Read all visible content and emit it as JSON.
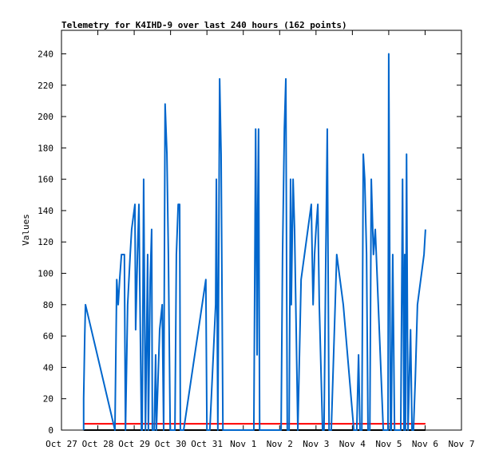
{
  "chart_data": {
    "type": "line",
    "title": "Telemetry for K4IHD-9 over last 240 hours (162 points)",
    "y_label": "Values",
    "xlim": [
      0,
      11
    ],
    "xticks": [
      {
        "value": 0,
        "label": "Oct 27"
      },
      {
        "value": 1,
        "label": "Oct 28"
      },
      {
        "value": 2,
        "label": "Oct 29"
      },
      {
        "value": 3,
        "label": "Oct 30"
      },
      {
        "value": 4,
        "label": "Oct 31"
      },
      {
        "value": 5,
        "label": "Nov 1"
      },
      {
        "value": 6,
        "label": "Nov 2"
      },
      {
        "value": 7,
        "label": "Nov 3"
      },
      {
        "value": 8,
        "label": "Nov 4"
      },
      {
        "value": 9,
        "label": "Nov 5"
      },
      {
        "value": 10,
        "label": "Nov 6"
      },
      {
        "value": 11,
        "label": "Nov 7"
      }
    ],
    "ylim": [
      0,
      255
    ],
    "yticks": [
      0,
      20,
      40,
      60,
      80,
      100,
      120,
      140,
      160,
      180,
      200,
      220,
      240
    ],
    "series": [
      {
        "color": "#000000",
        "x": [
          0.61,
          10.01
        ],
        "values": [
          0,
          0
        ]
      },
      {
        "color": "#ff0000",
        "x": [
          0.61,
          10.01
        ],
        "values": [
          4,
          4
        ]
      },
      {
        "color": "#0066cc",
        "x": [
          0.61,
          0.61,
          0.64,
          0.66,
          1.47,
          1.52,
          1.56,
          1.6,
          1.65,
          1.73,
          1.76,
          1.82,
          1.89,
          1.93,
          2.02,
          2.04,
          2.09,
          2.13,
          2.15,
          2.2,
          2.22,
          2.26,
          2.31,
          2.37,
          2.39,
          2.44,
          2.48,
          2.5,
          2.55,
          2.59,
          2.61,
          2.7,
          2.77,
          2.81,
          2.85,
          2.9,
          2.94,
          2.99,
          3.05,
          3.12,
          3.16,
          3.21,
          3.25,
          3.27,
          3.36,
          3.97,
          4.0,
          4.08,
          4.24,
          4.26,
          4.3,
          4.35,
          4.39,
          4.44,
          4.48,
          4.52,
          5.29,
          5.34,
          5.38,
          5.4,
          5.42,
          5.45,
          5.51,
          6.04,
          6.08,
          6.13,
          6.17,
          6.21,
          6.26,
          6.3,
          6.32,
          6.37,
          6.41,
          6.5,
          6.59,
          6.87,
          6.92,
          6.96,
          7.0,
          7.05,
          7.09,
          7.18,
          7.22,
          7.27,
          7.31,
          7.36,
          7.42,
          7.57,
          7.75,
          8.04,
          8.12,
          8.17,
          8.21,
          8.26,
          8.3,
          8.34,
          8.39,
          8.43,
          8.48,
          8.52,
          8.58,
          8.63,
          8.85,
          8.98,
          9.0,
          9.05,
          9.07,
          9.11,
          9.16,
          9.2,
          9.33,
          9.38,
          9.4,
          9.42,
          9.44,
          9.46,
          9.49,
          9.53,
          9.6,
          9.64,
          9.68,
          9.73,
          9.79,
          9.97,
          10.01
        ],
        "values": [
          0,
          20,
          60,
          80,
          0,
          96,
          80,
          96,
          112,
          112,
          0,
          80,
          112,
          128,
          144,
          64,
          112,
          144,
          100,
          0,
          0,
          160,
          0,
          112,
          0,
          96,
          128,
          0,
          0,
          48,
          0,
          64,
          80,
          0,
          208,
          176,
          112,
          0,
          0,
          0,
          112,
          144,
          144,
          0,
          0,
          96,
          0,
          0,
          80,
          160,
          0,
          224,
          176,
          0,
          0,
          0,
          0,
          192,
          48,
          144,
          192,
          0,
          0,
          0,
          112,
          192,
          224,
          0,
          0,
          160,
          80,
          160,
          128,
          0,
          96,
          144,
          80,
          112,
          128,
          144,
          80,
          0,
          0,
          112,
          192,
          0,
          0,
          112,
          80,
          0,
          0,
          48,
          0,
          0,
          176,
          160,
          112,
          0,
          0,
          160,
          112,
          128,
          0,
          0,
          240,
          0,
          0,
          112,
          0,
          0,
          0,
          160,
          80,
          0,
          112,
          0,
          176,
          0,
          64,
          0,
          0,
          32,
          80,
          112,
          128
        ]
      }
    ]
  }
}
